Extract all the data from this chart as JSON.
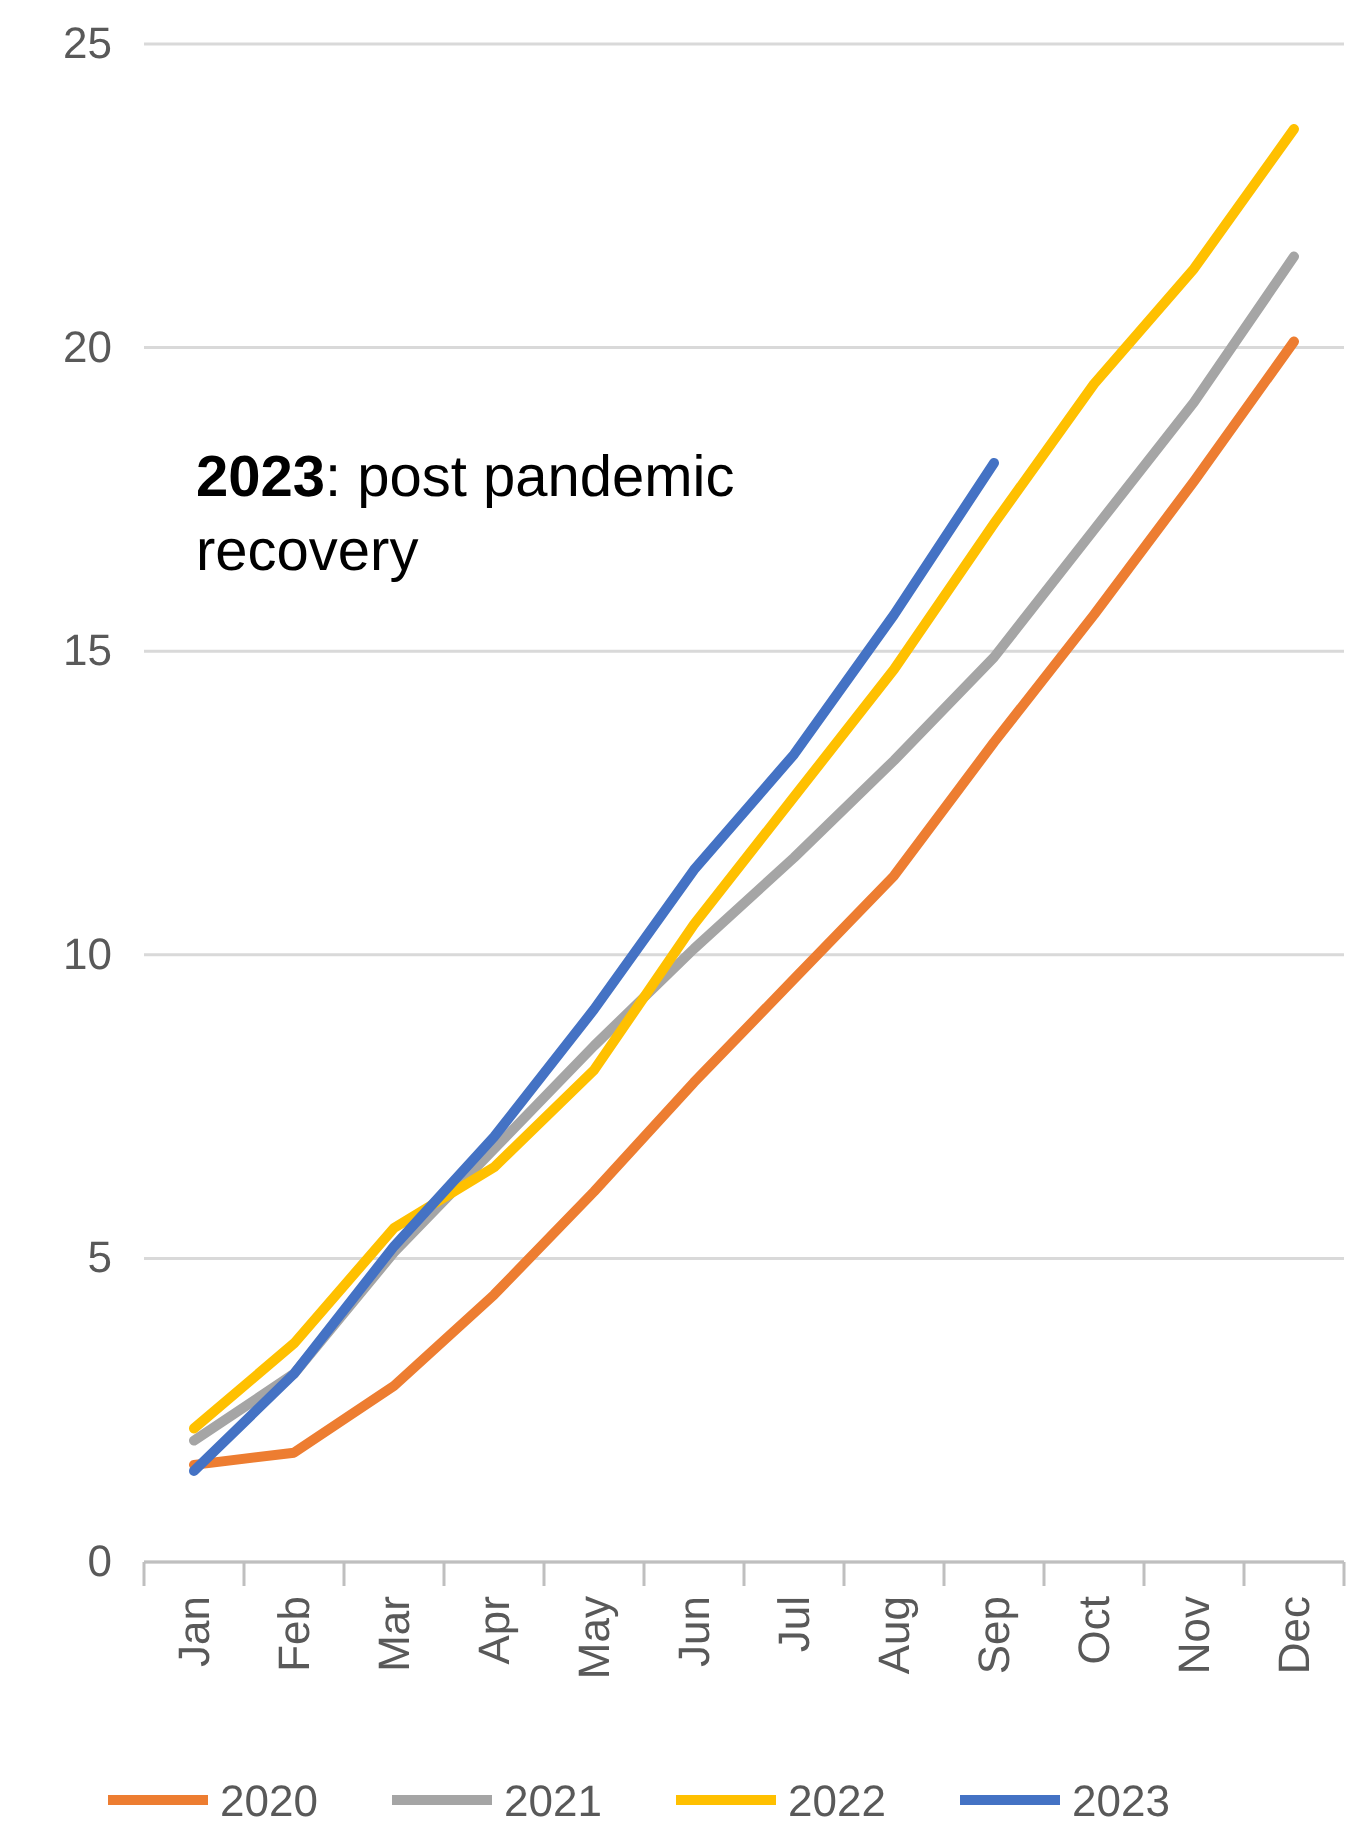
{
  "chart_data": {
    "type": "line",
    "categories": [
      "Jan",
      "Feb",
      "Mar",
      "Apr",
      "May",
      "Jun",
      "Jul",
      "Aug",
      "Sep",
      "Oct",
      "Nov",
      "Dec"
    ],
    "series": [
      {
        "name": "2020",
        "color": "#ed7d31",
        "values": [
          1.6,
          1.8,
          2.9,
          4.4,
          6.1,
          7.9,
          9.6,
          11.3,
          13.5,
          15.6,
          17.8,
          20.1
        ]
      },
      {
        "name": "2021",
        "color": "#a5a5a5",
        "values": [
          2.0,
          3.1,
          5.1,
          6.8,
          8.5,
          10.1,
          11.6,
          13.2,
          14.9,
          17.0,
          19.1,
          21.5
        ]
      },
      {
        "name": "2022",
        "color": "#ffc000",
        "values": [
          2.2,
          3.6,
          5.5,
          6.5,
          8.1,
          10.5,
          12.6,
          14.7,
          17.1,
          19.4,
          21.3,
          23.6
        ]
      },
      {
        "name": "2023",
        "color": "#4472c4",
        "values": [
          1.5,
          3.1,
          5.2,
          7.0,
          9.1,
          11.4,
          13.3,
          15.6,
          18.1,
          null,
          null,
          null
        ]
      }
    ],
    "ylim": [
      0,
      25
    ],
    "yticks": [
      0,
      5,
      10,
      15,
      20,
      25
    ],
    "grid": "y",
    "legend": "bottom",
    "marker": "none",
    "line_style": "solid",
    "annotations": [
      "2023: post pandemic recovery"
    ]
  }
}
